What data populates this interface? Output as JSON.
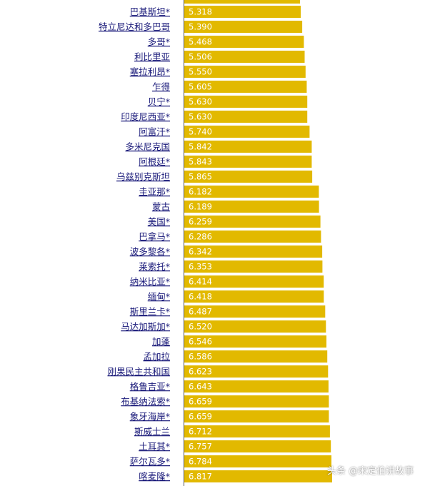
{
  "chart_data": {
    "type": "bar",
    "orientation": "horizontal",
    "bar_color": "#e2b900",
    "label_color": "#1a1a7a",
    "categories": [
      "巴基斯坦*",
      "特立尼达和多巴哥",
      "多哥*",
      "利比里亚",
      "塞拉利昂*",
      "乍得",
      "贝宁*",
      "印度尼西亚*",
      "阿富汗*",
      "多米尼克国",
      "阿根廷*",
      "乌兹别克斯坦",
      "圭亚那*",
      "蒙古",
      "美国*",
      "巴拿马*",
      "波多黎各*",
      "莱索托*",
      "纳米比亚*",
      "缅甸*",
      "斯里兰卡*",
      "马达加斯加*",
      "加蓬",
      "孟加拉",
      "刚果民主共和国",
      "格鲁吉亚*",
      "布基纳法索*",
      "象牙海岸*",
      "斯威士兰",
      "土耳其*",
      "萨尔瓦多*",
      "喀麦隆*"
    ],
    "values": [
      5.318,
      5.39,
      5.468,
      5.506,
      5.55,
      5.605,
      5.63,
      5.63,
      5.74,
      5.842,
      5.843,
      5.865,
      6.182,
      6.189,
      6.259,
      6.286,
      6.342,
      6.353,
      6.414,
      6.418,
      6.487,
      6.52,
      6.546,
      6.586,
      6.623,
      6.643,
      6.659,
      6.659,
      6.712,
      6.757,
      6.784,
      6.817
    ],
    "value_labels": [
      "5.318",
      "5.390",
      "5.468",
      "5.506",
      "5.550",
      "5.605",
      "5.630",
      "5.630",
      "5.740",
      "5.842",
      "5.843",
      "5.865",
      "6.182",
      "6.189",
      "6.259",
      "6.286",
      "6.342",
      "6.353",
      "6.414",
      "6.418",
      "6.487",
      "6.520",
      "6.546",
      "6.586",
      "6.623",
      "6.643",
      "6.659",
      "6.659",
      "6.712",
      "6.757",
      "6.784",
      "6.817"
    ]
  },
  "watermark": "头条 @宋定伯讲故事"
}
